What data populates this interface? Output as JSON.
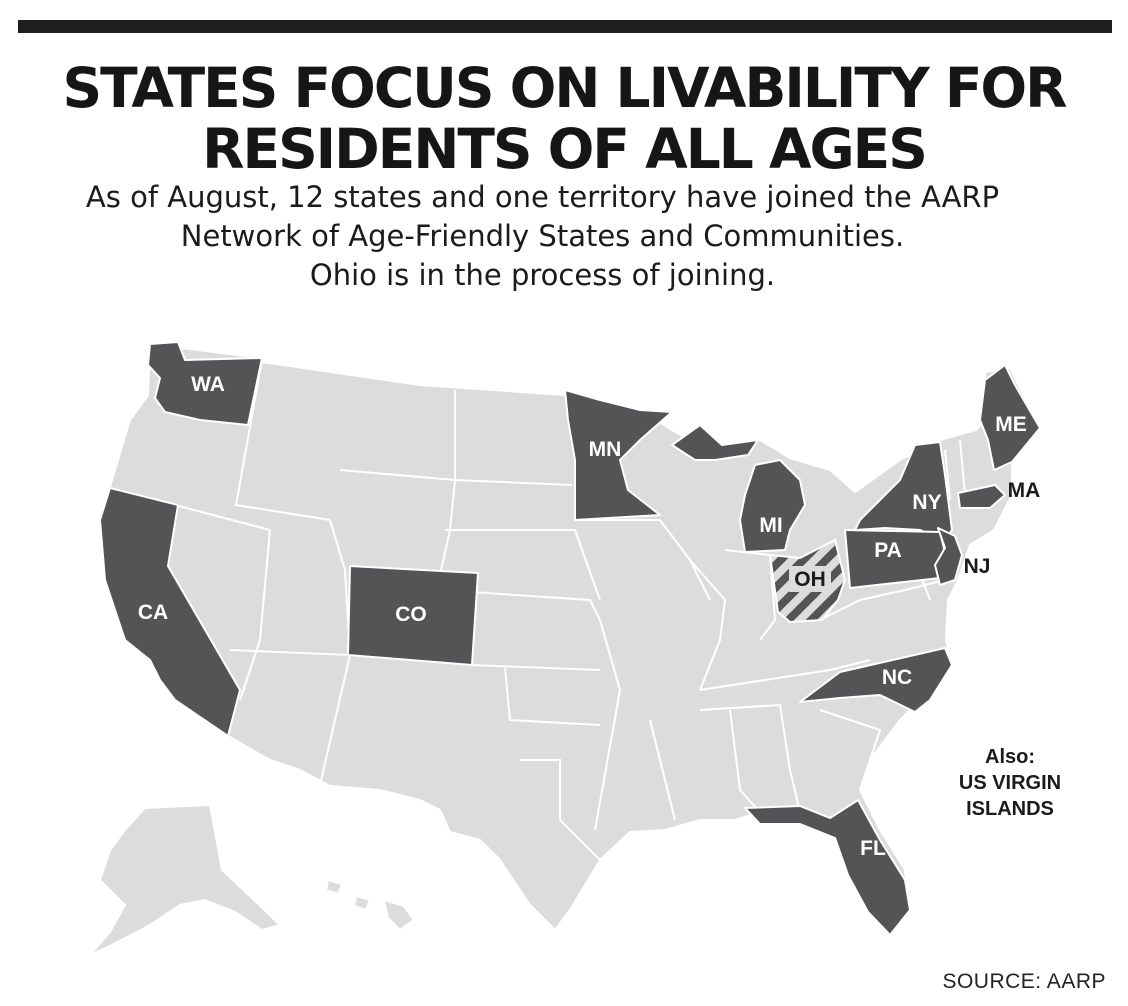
{
  "title": {
    "line1": "STATES FOCUS ON LIVABILITY FOR",
    "line2": "RESIDENTS OF ALL AGES"
  },
  "subtitle": {
    "line1": "As of August, 12 states and one territory have joined the AARP",
    "line2": "Network of Age-Friendly States and Communities.",
    "line3": "Ohio is in the process of joining."
  },
  "legend": {
    "member_color": "#545456",
    "non_member_color": "#dcdcdc",
    "joining_pattern": "diagonal-stripes"
  },
  "states": {
    "WA": "WA",
    "CA": "CA",
    "CO": "CO",
    "MN": "MN",
    "MI": "MI",
    "OH": "OH",
    "NY": "NY",
    "PA": "PA",
    "NJ": "NJ",
    "MA": "MA",
    "ME": "ME",
    "NC": "NC",
    "FL": "FL"
  },
  "also": {
    "heading": "Also:",
    "line1": "US VIRGIN",
    "line2": "ISLANDS"
  },
  "source": "SOURCE: AARP"
}
